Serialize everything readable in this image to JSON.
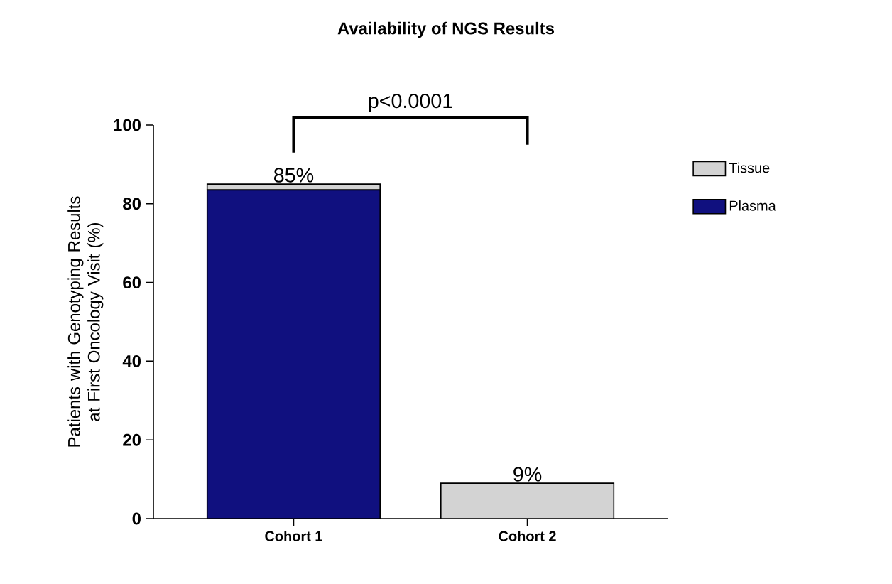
{
  "chart_data": {
    "type": "bar",
    "title": "Availability of NGS Results",
    "ylabel": "Patients with Genotyping Results at First Oncology Visit (%)",
    "categories": [
      "Cohort 1",
      "Cohort 2"
    ],
    "stacked": true,
    "series": [
      {
        "name": "Plasma",
        "color": "#10107f",
        "values": [
          83.5,
          0
        ]
      },
      {
        "name": "Tissue",
        "color": "#d3d3d3",
        "values": [
          1.5,
          9
        ]
      }
    ],
    "totals": [
      "85%",
      "9%"
    ],
    "annotations": [
      "p<0.0001"
    ],
    "ylim": [
      0,
      100
    ],
    "yticks": [
      0,
      20,
      40,
      60,
      80,
      100
    ],
    "grid": false,
    "legend": "right"
  }
}
